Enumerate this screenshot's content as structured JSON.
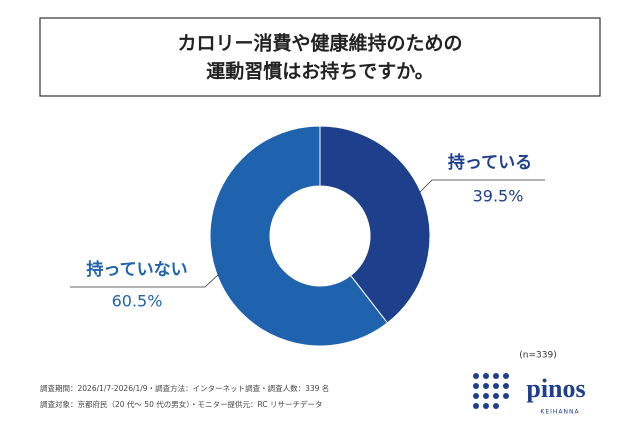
{
  "chart_data": {
    "type": "donut",
    "title": [
      "カロリー消費や健康維持のための",
      "運動習慣はお持ちですか。"
    ],
    "categories": [
      "持っている",
      "持っていない"
    ],
    "values": [
      39.5,
      60.5
    ],
    "value_labels": [
      "39.5%",
      "60.5%"
    ],
    "colors": [
      "#1e3f8c",
      "#1f62ad"
    ],
    "sample_note": "(n=339)",
    "footnotes": [
      "調査期間：2026/1/7-2026/1/9・調査方法：インターネット調査・調査人数：339 名",
      "調査対象：京都府民（20 代～ 50 代の男女）・モニター提供元：RC リサーチデータ"
    ]
  },
  "logo": {
    "name": "pinos",
    "sub": "KEIHANNA"
  }
}
